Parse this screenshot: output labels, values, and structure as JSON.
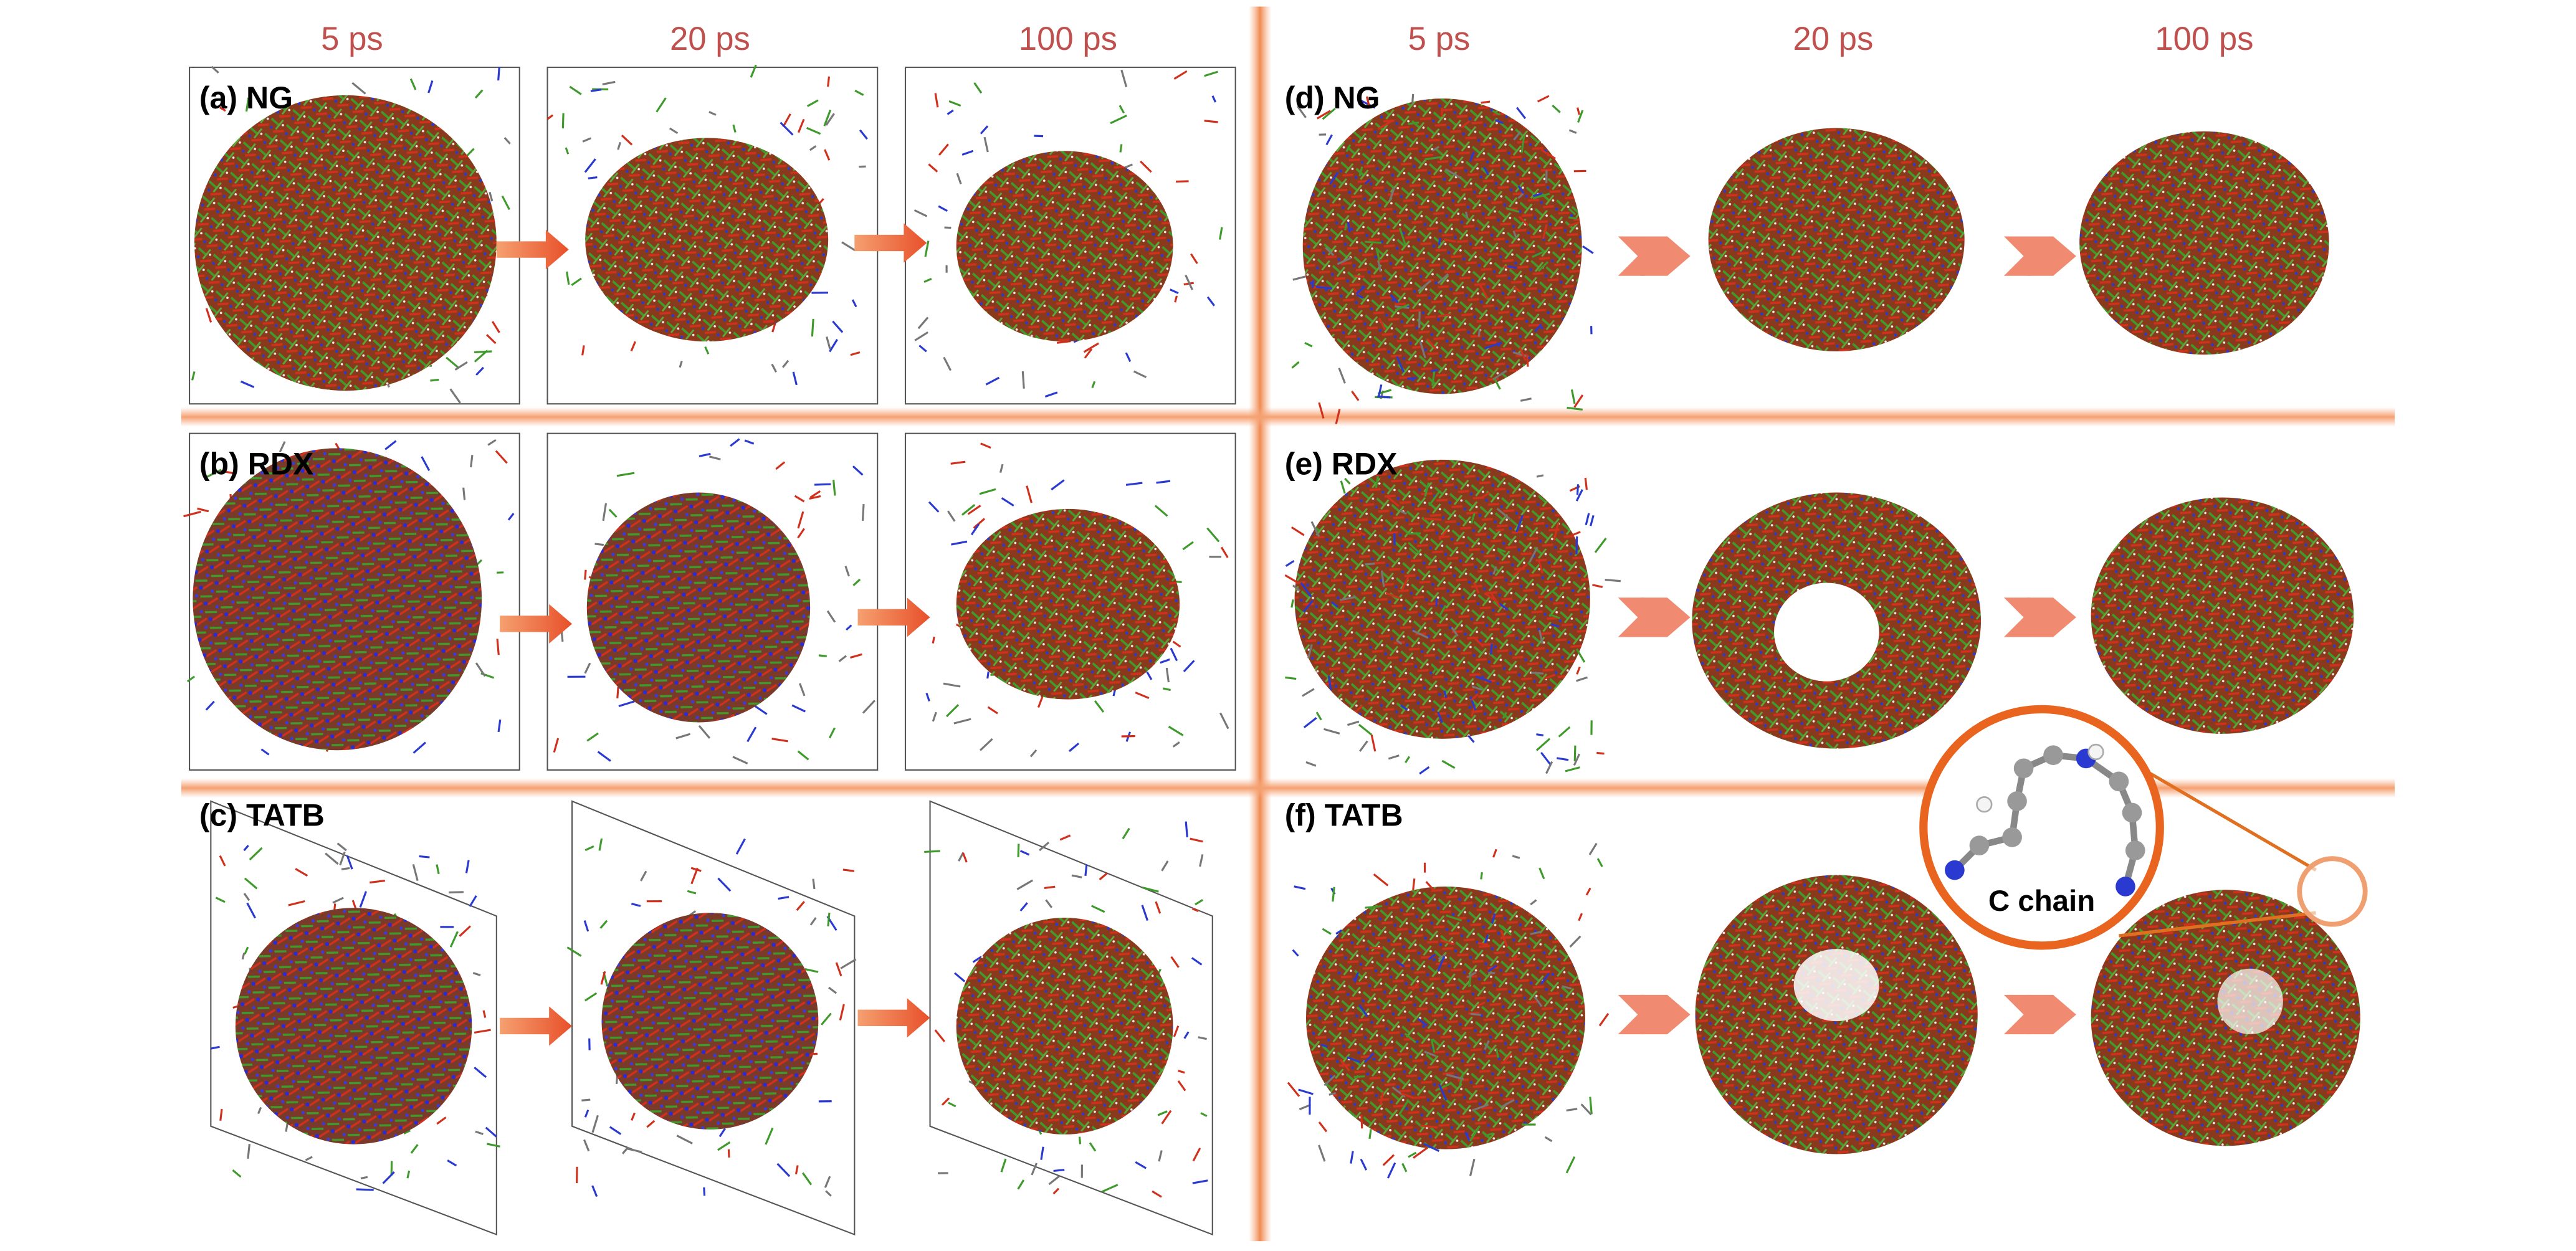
{
  "column_headers": {
    "left": [
      "5 ps",
      "20 ps",
      "100 ps"
    ],
    "right": [
      "5 ps",
      "20 ps",
      "100 ps"
    ]
  },
  "panels": [
    {
      "label": "(a) NG"
    },
    {
      "label": "(b) RDX"
    },
    {
      "label": "(c) TATB"
    },
    {
      "label": "(d) NG"
    },
    {
      "label": "(e) RDX"
    },
    {
      "label": "(f) TATB"
    }
  ],
  "inset": {
    "label": "C chain"
  }
}
